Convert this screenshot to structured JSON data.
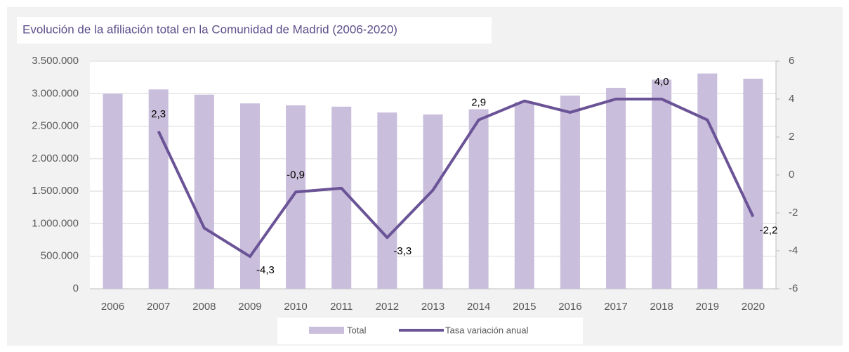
{
  "chart_data": {
    "type": "bar-line",
    "title": "Evolución de la afiliación total en la Comunidad de Madrid (2006-2020)",
    "categories": [
      "2006",
      "2007",
      "2008",
      "2009",
      "2010",
      "2011",
      "2012",
      "2013",
      "2014",
      "2015",
      "2016",
      "2017",
      "2018",
      "2019",
      "2020"
    ],
    "series": [
      {
        "name": "Total",
        "type": "bar",
        "color": "#c9bedb",
        "axis": "y",
        "values": [
          3000000,
          3065000,
          2985000,
          2850000,
          2820000,
          2800000,
          2710000,
          2680000,
          2760000,
          2870000,
          2970000,
          3090000,
          3215000,
          3310000,
          3230000
        ]
      },
      {
        "name": "Tasa variación anual",
        "type": "line",
        "color": "#6a5396",
        "axis": "y2",
        "values": [
          null,
          2.3,
          -2.8,
          -4.3,
          -0.9,
          -0.7,
          -3.3,
          -0.8,
          2.9,
          3.9,
          3.3,
          4.0,
          4.0,
          2.9,
          -2.2
        ],
        "value_labels": [
          null,
          "2,3",
          null,
          "-4,3",
          "-0,9",
          null,
          "-3,3",
          null,
          "2,9",
          null,
          null,
          null,
          "4,0",
          null,
          "-2,2"
        ]
      }
    ],
    "ylim": [
      0,
      3500000
    ],
    "yticks": [
      0,
      {
        "value": 500000,
        "label": "500.000"
      },
      {
        "value": 1000000,
        "label": "1.000.000"
      },
      {
        "value": 1500000,
        "label": "1.500.000"
      },
      {
        "value": 2000000,
        "label": "2.000.000"
      },
      {
        "value": 2500000,
        "label": "2.500.000"
      },
      {
        "value": 3000000,
        "label": "3.000.000"
      },
      {
        "value": 3500000,
        "label": "3.500.000"
      }
    ],
    "y2lim": [
      -6,
      6
    ],
    "y2ticks": [
      -6,
      -4,
      -2,
      0,
      2,
      4,
      6
    ],
    "grid": true
  }
}
